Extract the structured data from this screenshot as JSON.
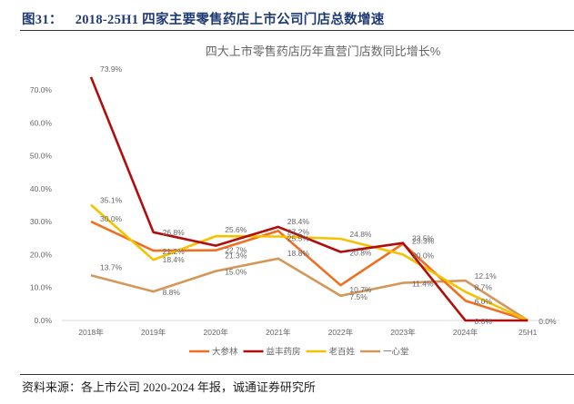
{
  "figure": {
    "number": "图31：",
    "title": "2018-25H1 四家主要零售药店上市公司门店总数增速",
    "source": "资料来源：各上市公司 2020-2024 年报，诚通证券研究所"
  },
  "chart_data": {
    "type": "line",
    "title": "四大上市零售药店历年直营门店数同比增长%",
    "xlabel": "",
    "ylabel": "",
    "categories": [
      "2018年",
      "2019年",
      "2020年",
      "2021年",
      "2022年",
      "2023年",
      "2024年",
      "25H1"
    ],
    "ylim": [
      0,
      70
    ],
    "yticks": [
      0,
      10,
      20,
      30,
      40,
      50,
      60,
      70
    ],
    "ytick_labels": [
      "0.0%",
      "10.0%",
      "20.0%",
      "30.0%",
      "40.0%",
      "50.0%",
      "60.0%",
      "70.0%"
    ],
    "grid": false,
    "legend_position": "bottom",
    "series": [
      {
        "name": "大参林",
        "color": "#f07023",
        "values": [
          30.0,
          21.2,
          21.3,
          27.2,
          10.7,
          23.3,
          6.0,
          0.0
        ],
        "labels": [
          "30.0%",
          "21.2%",
          "21.3%",
          "27.2%",
          "10.7%",
          "23.3%",
          "6.0%",
          ""
        ]
      },
      {
        "name": "益丰药房",
        "color": "#b00d0d",
        "values": [
          73.9,
          26.8,
          22.7,
          28.4,
          20.8,
          23.5,
          0.0,
          0.0
        ],
        "labels": [
          "73.9%",
          "26.8%",
          "22.7%",
          "28.4%",
          "20.8%",
          "23.5%",
          "0.0%",
          "0.0%"
        ]
      },
      {
        "name": "老百姓",
        "color": "#f5c200",
        "values": [
          35.1,
          18.4,
          25.6,
          25.5,
          24.8,
          20.0,
          8.7,
          0.0
        ],
        "labels": [
          "35.1%",
          "18.4%",
          "25.6%",
          "25.5%",
          "24.8%",
          "20.0%",
          "8.7%",
          ""
        ]
      },
      {
        "name": "一心堂",
        "color": "#d4975a",
        "values": [
          13.7,
          8.8,
          15.0,
          18.8,
          7.5,
          11.4,
          12.1,
          0.0
        ],
        "labels": [
          "13.7%",
          "8.8%",
          "15.0%",
          "18.8%",
          "7.5%",
          "11.4%",
          "12.1%",
          ""
        ]
      }
    ]
  }
}
